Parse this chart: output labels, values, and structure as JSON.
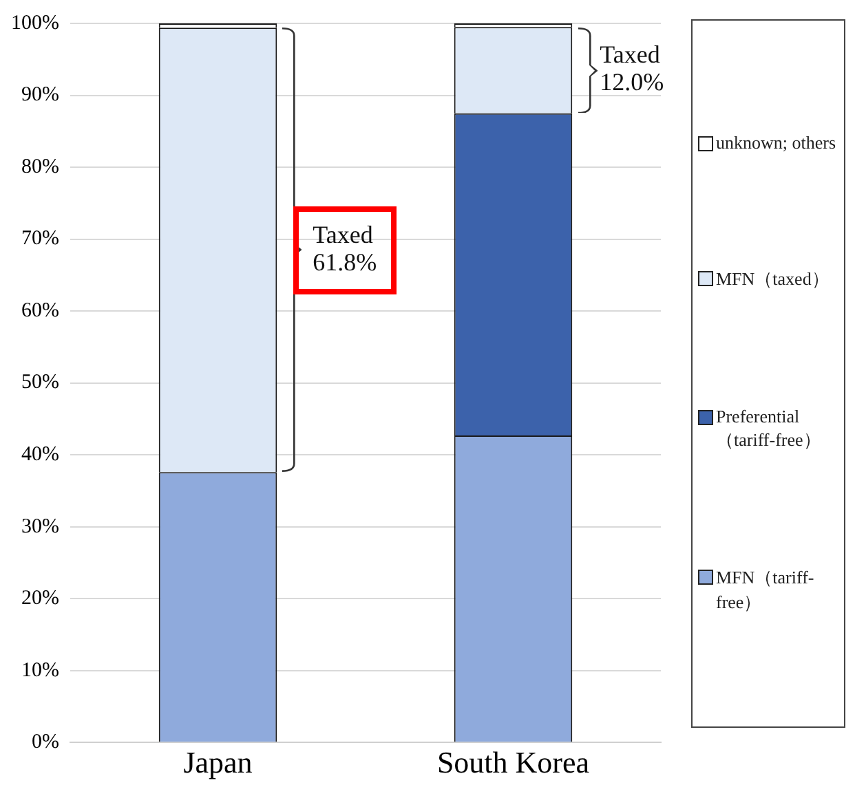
{
  "chart_data": {
    "type": "bar",
    "stacked": true,
    "categories": [
      "Japan",
      "South Korea"
    ],
    "series": [
      {
        "name": "MFN（tariff-free）",
        "color": "#8faadc",
        "values": [
          37.6,
          42.7
        ]
      },
      {
        "name": "Preferential（tariff-free）",
        "color": "#3c62ab",
        "values": [
          0,
          44.8
        ]
      },
      {
        "name": "MFN（taxed）",
        "color": "#dde8f6",
        "values": [
          61.8,
          12.0
        ]
      },
      {
        "name": "unknown; others",
        "color": "#ffffff",
        "values": [
          0.6,
          0.5
        ]
      }
    ],
    "ylim": [
      0,
      100
    ],
    "yticks": [
      {
        "value": 0,
        "label": "0%"
      },
      {
        "value": 10,
        "label": "10%"
      },
      {
        "value": 20,
        "label": "20%"
      },
      {
        "value": 30,
        "label": "30%"
      },
      {
        "value": 40,
        "label": "40%"
      },
      {
        "value": 50,
        "label": "50%"
      },
      {
        "value": 60,
        "label": "60%"
      },
      {
        "value": 70,
        "label": "70%"
      },
      {
        "value": 80,
        "label": "80%"
      },
      {
        "value": 90,
        "label": "90%"
      },
      {
        "value": 100,
        "label": "100%"
      }
    ],
    "grid": "y",
    "legend": "right",
    "annotations": [
      "Taxed 61.8%",
      "Taxed 12.0%"
    ]
  }
}
